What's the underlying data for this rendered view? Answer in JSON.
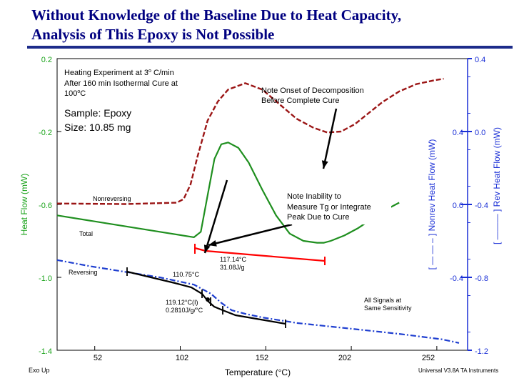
{
  "title": {
    "line1": "Without Knowledge of the Baseline Due to Heat Capacity,",
    "line2": "Analysis of This Epoxy is Not Possible"
  },
  "colors": {
    "title": "#000080",
    "left_axis": "#1aa31a",
    "right_axes": "#1a2fd6",
    "nonreversing": "#9b1515",
    "total": "#1f8f1f",
    "reversing": "#1f3fd0",
    "red_segment": "#ff0000",
    "black_segment": "#000000",
    "rule": "#1c2b8a"
  },
  "chart_data": {
    "type": "line",
    "xlabel": "Temperature (°C)",
    "xticks": [
      52,
      102,
      152,
      202,
      252
    ],
    "xlim": [
      30,
      270
    ],
    "y_left": {
      "label": "Heat Flow (mW)",
      "ticks": [
        "0.2",
        "-0.2",
        "-0.6",
        "-1.0",
        "-1.4"
      ],
      "ylim": [
        -1.4,
        0.2
      ]
    },
    "y_right_nonrev": {
      "label": "[ — — – ] Nonrev Heat Flow (mW)",
      "ticks": [
        "0.4",
        "0.0",
        "-0.4"
      ]
    },
    "y_right_rev": {
      "label": "[ ——— ] Rev Heat Flow (mW)",
      "ticks": [
        "0.4",
        "0.0",
        "-0.4",
        "-0.8",
        "-1.2"
      ]
    },
    "series": [
      {
        "name": "Nonreversing",
        "style": "dashed",
        "x": [
          30,
          70,
          100,
          104,
          108,
          112,
          118,
          124,
          130,
          140,
          150,
          160,
          170,
          180,
          188,
          196,
          204,
          212,
          220,
          230,
          240,
          250,
          256
        ],
        "y": [
          -0.595,
          -0.598,
          -0.59,
          -0.57,
          -0.49,
          -0.34,
          -0.14,
          -0.035,
          0.03,
          0.065,
          0.03,
          -0.05,
          -0.13,
          -0.18,
          -0.205,
          -0.2,
          -0.16,
          -0.1,
          -0.04,
          0.02,
          0.06,
          0.08,
          0.09
        ]
      },
      {
        "name": "Total",
        "style": "solid",
        "x": [
          30,
          60,
          90,
          110,
          114,
          118,
          122,
          126,
          130,
          136,
          142,
          150,
          158,
          166,
          174,
          182,
          186,
          190,
          198,
          206,
          214,
          222,
          230
        ],
        "y": [
          -0.66,
          -0.705,
          -0.75,
          -0.78,
          -0.75,
          -0.55,
          -0.35,
          -0.27,
          -0.26,
          -0.29,
          -0.37,
          -0.52,
          -0.66,
          -0.76,
          -0.8,
          -0.81,
          -0.81,
          -0.8,
          -0.77,
          -0.73,
          -0.68,
          -0.63,
          -0.59
        ]
      },
      {
        "name": "Reversing",
        "style": "dash-dot",
        "x": [
          30,
          50,
          70,
          90,
          110,
          120,
          126,
          132,
          140,
          150,
          170,
          200,
          230,
          255,
          265
        ],
        "y": [
          -0.905,
          -0.94,
          -0.97,
          -1.0,
          -1.04,
          -1.09,
          -1.14,
          -1.18,
          -1.2,
          -1.22,
          -1.25,
          -1.28,
          -1.31,
          -1.34,
          -1.36
        ]
      }
    ],
    "annotations": [
      {
        "id": "heating",
        "lines": [
          "Heating Experiment at 3",
          "o",
          " C/min",
          "After 160 min Isothermal Cure at",
          "100",
          "o",
          "C"
        ]
      },
      {
        "id": "sample",
        "lines": [
          "Sample: Epoxy",
          "Size: 10.85 mg"
        ]
      },
      {
        "id": "decomp",
        "lines": [
          "Note Onset of Decomposition",
          "Before Complete Cure"
        ]
      },
      {
        "id": "inability",
        "lines": [
          "Note Inability to",
          "Measure Tg or Integrate",
          "Peak Due to Cure"
        ]
      },
      {
        "id": "onset",
        "lines": [
          "117.14°C",
          "31.08J/g"
        ]
      },
      {
        "id": "tg1",
        "lines": [
          "110.75°C"
        ]
      },
      {
        "id": "tg2",
        "lines": [
          "119.12°C(I)",
          "0.2810J/g/°C"
        ]
      },
      {
        "id": "same",
        "lines": [
          "All Signals at",
          "Same Sensitivity"
        ]
      }
    ],
    "series_labels": {
      "nonreversing": "Nonreversing",
      "total": "Total",
      "reversing": "Reversing"
    },
    "footer": {
      "exo": "Exo Up",
      "instrument": "Universal V3.8A TA Instruments"
    }
  }
}
